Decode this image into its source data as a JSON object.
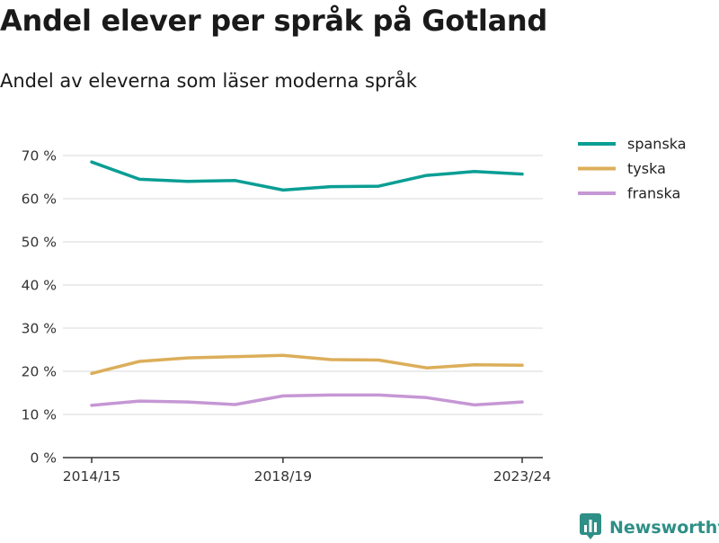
{
  "title": "Andel elever per språk på Gotland",
  "subtitle": "Andel av eleverna som läser moderna språk",
  "brand": "Newsworthy",
  "chart_data": {
    "type": "line",
    "x": [
      0,
      1,
      2,
      3,
      4,
      5,
      6,
      7,
      8,
      9
    ],
    "x_tick_labels": [
      {
        "x": 0,
        "label": "2014/15"
      },
      {
        "x": 4,
        "label": "2018/19"
      },
      {
        "x": 9,
        "label": "2023/24"
      }
    ],
    "y_ticks": [
      0,
      10,
      20,
      30,
      40,
      50,
      60,
      70
    ],
    "y_tick_labels": [
      "0 %",
      "10 %",
      "20 %",
      "30 %",
      "40 %",
      "50 %",
      "60 %",
      "70 %"
    ],
    "ylim": [
      0,
      70
    ],
    "grid": true,
    "legend_position": "top-right",
    "series": [
      {
        "name": "spanska",
        "color": "#0a9e94",
        "values": [
          68.5,
          64.5,
          64,
          64.2,
          62,
          62.8,
          62.9,
          65.4,
          66.3,
          65.7
        ]
      },
      {
        "name": "tyska",
        "color": "#dcae5a",
        "values": [
          19.5,
          22.3,
          23.1,
          23.4,
          23.7,
          22.7,
          22.6,
          20.8,
          21.5,
          21.4
        ]
      },
      {
        "name": "franska",
        "color": "#c597d4",
        "values": [
          12.1,
          13.1,
          12.9,
          12.3,
          14.3,
          14.5,
          14.5,
          13.9,
          12.2,
          12.9
        ]
      }
    ]
  }
}
